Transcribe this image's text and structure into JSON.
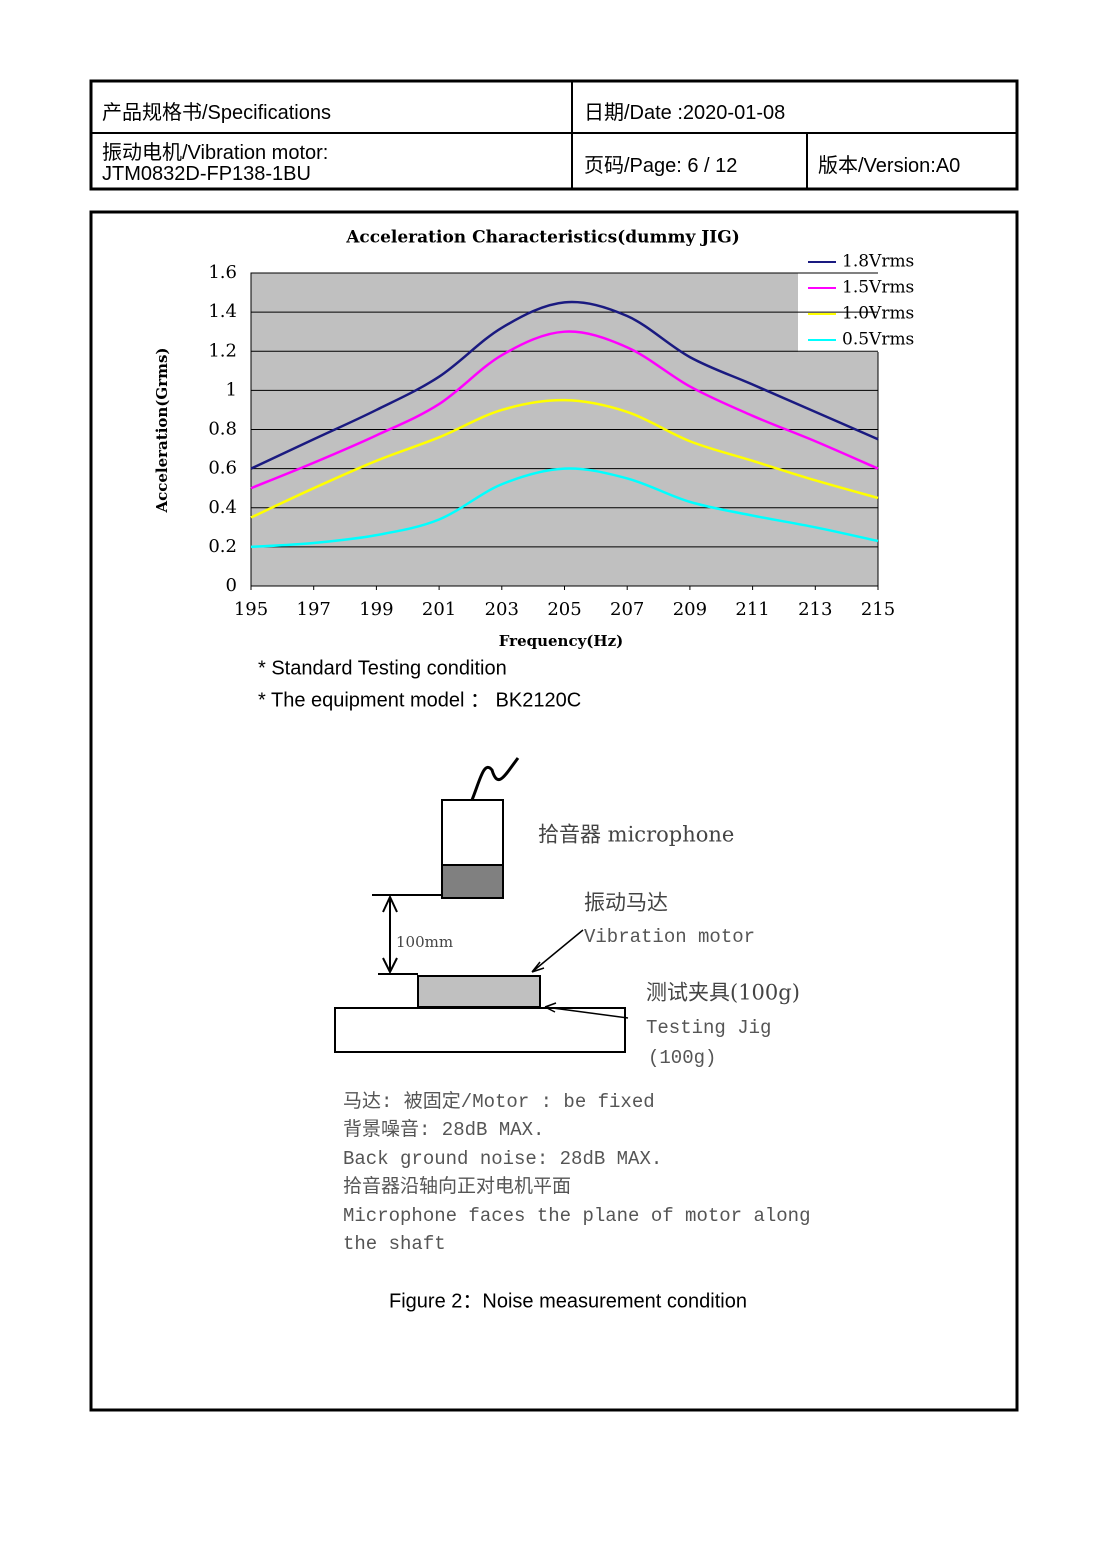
{
  "header": {
    "title": "产品规格书/Specifications",
    "date": "日期/Date :2020-01-08",
    "product": "振动电机/Vibration motor:",
    "model": "JTM0832D-FP138-1BU",
    "page": "页码/Page: 6 / 12",
    "version": "版本/Version:A0"
  },
  "chart_data": {
    "type": "line",
    "title": "Acceleration Characteristics(dummy JIG)",
    "x_label": "Frequency(Hz)",
    "y_label": "Acceleration(Grms)",
    "x": [
      195,
      197,
      199,
      201,
      203,
      205,
      207,
      209,
      211,
      213,
      215
    ],
    "series": [
      {
        "name": "1.8Vrms",
        "color": "#1a1a80",
        "values": [
          0.6,
          0.75,
          0.9,
          1.07,
          1.32,
          1.45,
          1.38,
          1.17,
          1.03,
          0.89,
          0.75
        ]
      },
      {
        "name": "1.5Vrms",
        "color": "#ff00ff",
        "values": [
          0.5,
          0.63,
          0.77,
          0.93,
          1.18,
          1.3,
          1.22,
          1.02,
          0.87,
          0.74,
          0.6
        ]
      },
      {
        "name": "1.0Vrms",
        "color": "#ffff00",
        "values": [
          0.35,
          0.5,
          0.64,
          0.76,
          0.9,
          0.95,
          0.89,
          0.74,
          0.64,
          0.54,
          0.45
        ]
      },
      {
        "name": "0.5Vrms",
        "color": "#00ffff",
        "values": [
          0.2,
          0.22,
          0.26,
          0.34,
          0.52,
          0.6,
          0.55,
          0.43,
          0.36,
          0.3,
          0.23
        ]
      }
    ],
    "xlim": [
      195,
      215
    ],
    "xticks": [
      195,
      197,
      199,
      201,
      203,
      205,
      207,
      209,
      211,
      213,
      215
    ],
    "ylim": [
      0,
      1.6
    ],
    "yticks": [
      0,
      0.2,
      0.4,
      0.6,
      0.8,
      1,
      1.2,
      1.4,
      1.6
    ],
    "grid": true,
    "legend": "top-right"
  },
  "notes": [
    "* Standard Testing condition",
    "* The equipment model  ：  BK2120C"
  ],
  "diagram": {
    "microphone": "拾音器 microphone",
    "motor_cn": "振动马达",
    "motor_en": "Vibration  motor",
    "distance": "100mm",
    "jig_cn": "测试夹具(100g)",
    "jig_en": "Testing Jig",
    "jig_weight": "(100g)",
    "conditions": [
      "马达: 被固定/Motor : be fixed",
      "背景噪音:  28dB MAX.",
      "Back ground noise: 28dB MAX.",
      "拾音器沿轴向正对电机平面",
      "Microphone faces the plane of motor along",
      "the shaft"
    ]
  },
  "caption": "Figure 2：Noise measurement condition"
}
